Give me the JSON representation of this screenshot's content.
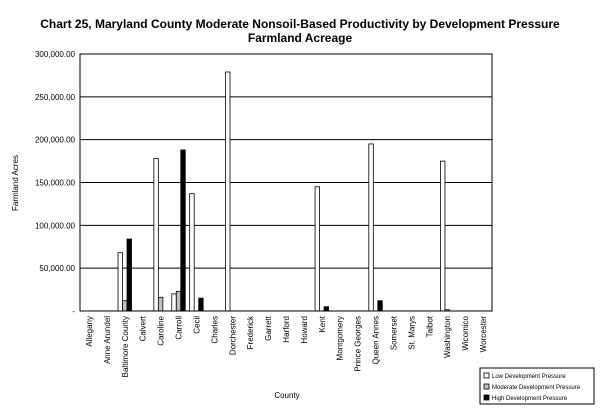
{
  "chart_data": {
    "type": "bar",
    "title_line1": "Chart 25, Maryland County Moderate Nonsoil-Based Productivity by Development Pressure",
    "title_line2": "Farmland Acreage",
    "xlabel": "County",
    "ylabel": "Farmland Acres",
    "ylim": [
      0,
      300000
    ],
    "yticks": [
      0,
      50000,
      100000,
      150000,
      200000,
      250000,
      300000
    ],
    "ytick_labels": [
      "-",
      "50,000.00",
      "100,000.00",
      "150,000.00",
      "200,000.00",
      "250,000.00",
      "300,000.00"
    ],
    "grid": true,
    "legend_position": "bottom-right",
    "categories": [
      "Allegany",
      "Anne Arundel",
      "Baltimore County",
      "Calvert",
      "Caroline",
      "Carroll",
      "Cecil",
      "Charles",
      "Dorchester",
      "Frederick",
      "Garrett",
      "Harford",
      "Howard",
      "Kent",
      "Montgomery",
      "Prince Georges",
      "Queen Annes",
      "Somerset",
      "St. Marys",
      "Talbot",
      "Washington",
      "Wicomico",
      "Worcester"
    ],
    "series": [
      {
        "name": "Low Development Pressure",
        "color": "#ffffff",
        "values": [
          0,
          0,
          68000,
          0,
          178000,
          20000,
          137000,
          0,
          279000,
          0,
          0,
          0,
          0,
          145000,
          0,
          0,
          195000,
          0,
          0,
          0,
          175000,
          0,
          0
        ]
      },
      {
        "name": "Moderate Development Pressure",
        "color": "#c0c0c0",
        "values": [
          0,
          0,
          12000,
          0,
          16000,
          23000,
          0,
          0,
          0,
          0,
          0,
          0,
          0,
          0,
          0,
          0,
          0,
          0,
          0,
          0,
          1500,
          0,
          0
        ]
      },
      {
        "name": "High Development Pressure",
        "color": "#000000",
        "values": [
          0,
          0,
          84000,
          0,
          0,
          188000,
          15000,
          0,
          0,
          0,
          0,
          0,
          0,
          5000,
          0,
          0,
          12000,
          0,
          0,
          0,
          0,
          0,
          0
        ]
      }
    ]
  }
}
